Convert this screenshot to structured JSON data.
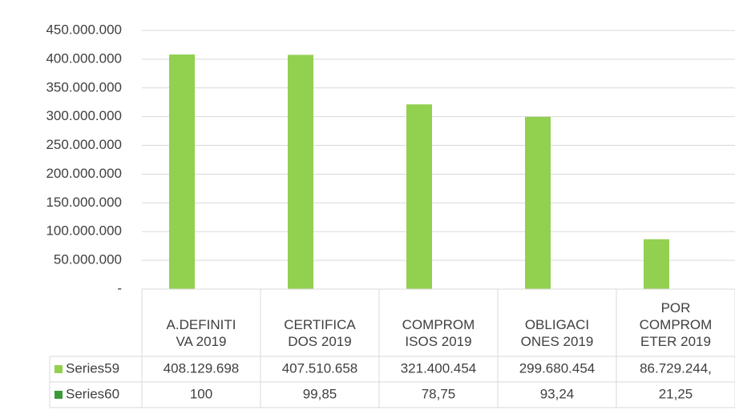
{
  "chart_data": {
    "type": "bar",
    "categories": [
      "A.DEFINITI\nVA 2019",
      "CERTIFICA\nDOS 2019",
      "COMPROM\nISOS 2019",
      "OBLIGACI\nONES 2019",
      "POR\nCOMPROM\nETER 2019"
    ],
    "series": [
      {
        "name": "Series59",
        "color": "#92d050",
        "values": [
          408129698,
          407510658,
          321400454,
          299680454,
          86729244
        ],
        "value_labels": [
          "408.129.698",
          "407.510.658",
          "321.400.454",
          "299.680.454",
          "86.729.244,"
        ]
      },
      {
        "name": "Series60",
        "color": "#3a9a3a",
        "values": [
          100,
          99.85,
          78.75,
          93.24,
          21.25
        ],
        "value_labels": [
          "100",
          "99,85",
          "78,75",
          "93,24",
          "21,25"
        ]
      }
    ],
    "ylim": [
      0,
      450000000
    ],
    "yticks": [
      {
        "value": 0,
        "label": "-"
      },
      {
        "value": 50000000,
        "label": "50.000.000"
      },
      {
        "value": 100000000,
        "label": "100.000.000"
      },
      {
        "value": 150000000,
        "label": "150.000.000"
      },
      {
        "value": 200000000,
        "label": "200.000.000"
      },
      {
        "value": 250000000,
        "label": "250.000.000"
      },
      {
        "value": 300000000,
        "label": "300.000.000"
      },
      {
        "value": 350000000,
        "label": "350.000.000"
      },
      {
        "value": 400000000,
        "label": "400.000.000"
      },
      {
        "value": 450000000,
        "label": "450.000.000"
      }
    ],
    "grid": true
  }
}
